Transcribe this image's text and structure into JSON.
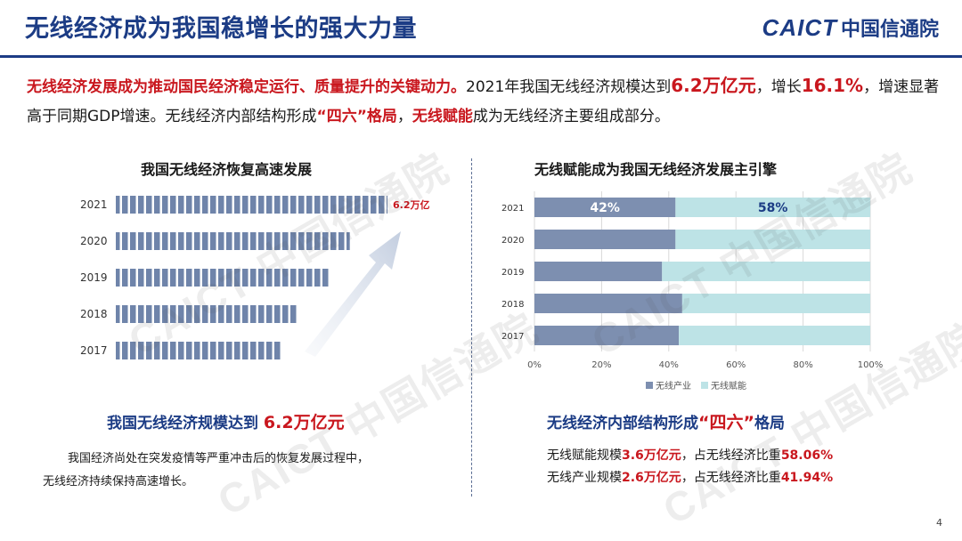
{
  "header": {
    "title": "无线经济成为我国稳增长的强大力量",
    "logo_mark": "CAICT",
    "logo_cn": "中国信通院"
  },
  "intro": {
    "s1": "无线经济发展成为推动国民经济稳定运行、质量提升的关键动力。",
    "s2": "2021年我国无线经济规模达到",
    "s3": "6.2万亿元",
    "s4": "，增长",
    "s5": "16.1%",
    "s6": "，增速显著高于同期GDP增速。无线经济内部结构形成",
    "s7": "“四六”格局",
    "s8": "，",
    "s9": "无线赋能",
    "s10": "成为无线经济主要组成部分。"
  },
  "left": {
    "heading_a": "我国无线经济规模达到 ",
    "heading_b": "6.2万亿元",
    "para_1": "我国经济尚处在突发疫情等严重冲击后的恢复发展过程中，",
    "para_2": "无线经济持续保持高速增长。"
  },
  "right": {
    "heading_a": "无线经济内部结构形成",
    "heading_b": "“四六”",
    "heading_c": "格局",
    "line1_a": "无线赋能规模",
    "line1_b": "3.6万亿元",
    "line1_c": "，占无线经济比重",
    "line1_d": "58.06%",
    "line2_a": "无线产业规模",
    "line2_b": "2.6万亿元",
    "line2_c": "，占无线经济比重",
    "line2_d": "41.94%"
  },
  "page_number": "4",
  "watermark": "CAICT 中国信通院",
  "colors": {
    "title_blue": "#1c3c85",
    "accent_red": "#c9171e",
    "bar_blue": "#6f84aa",
    "industry": "#7d8fb0",
    "enable": "#bde3e6"
  },
  "chart_data": [
    {
      "type": "bar",
      "orientation": "horizontal",
      "title": "我国无线经济恢复高速发展",
      "categories": [
        "2021",
        "2020",
        "2019",
        "2018",
        "2017"
      ],
      "values": [
        6.2,
        5.34,
        4.88,
        4.14,
        3.78
      ],
      "data_labels": [
        "6.2万亿",
        "",
        "",
        "",
        ""
      ],
      "grid": false,
      "legend": "none",
      "axis": {
        "x_visible": false
      }
    },
    {
      "type": "bar",
      "orientation": "horizontal",
      "stacked": true,
      "percent": true,
      "title": "无线赋能成为我国无线经济发展主引擎",
      "categories": [
        "2021",
        "2020",
        "2019",
        "2018",
        "2017"
      ],
      "series": [
        {
          "name": "无线产业",
          "values": [
            42,
            42,
            38,
            44,
            43
          ]
        },
        {
          "name": "无线赋能",
          "values": [
            58,
            58,
            62,
            56,
            57
          ]
        }
      ],
      "data_labels": {
        "2021": [
          "42%",
          "58%"
        ]
      },
      "x_ticks": [
        "0%",
        "20%",
        "40%",
        "60%",
        "80%",
        "100%"
      ],
      "xlim": [
        0,
        100
      ],
      "grid": true,
      "legend": "bottom"
    }
  ]
}
